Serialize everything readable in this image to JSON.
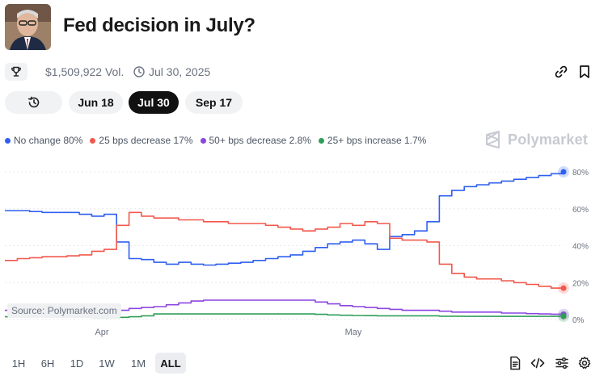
{
  "header": {
    "title": "Fed decision in July?",
    "volume": "$1,509,922 Vol.",
    "date": "Jul 30, 2025"
  },
  "date_pills": [
    {
      "label": "Jun 18",
      "active": false
    },
    {
      "label": "Jul 30",
      "active": true
    },
    {
      "label": "Sep 17",
      "active": false
    }
  ],
  "brand": "Polymarket",
  "source": "Source: Polymarket.com",
  "timeframes": [
    {
      "label": "1H",
      "active": false
    },
    {
      "label": "6H",
      "active": false
    },
    {
      "label": "1D",
      "active": false
    },
    {
      "label": "1W",
      "active": false
    },
    {
      "label": "1M",
      "active": false
    },
    {
      "label": "ALL",
      "active": true
    }
  ],
  "chart_data": {
    "type": "line",
    "ylim": [
      0,
      80
    ],
    "yticks": [
      "80%",
      "60%",
      "40%",
      "20%",
      "0%"
    ],
    "xticks": [
      "Apr",
      "May"
    ],
    "legend_position": "top-left",
    "series": [
      {
        "name": "No change",
        "legend_label": "No change 80%",
        "color": "#2f5ff0",
        "values": [
          59,
          59,
          58.5,
          58,
          58,
          58,
          57,
          56,
          57,
          42,
          33,
          32.5,
          31,
          30,
          31,
          30,
          29.5,
          30,
          30.5,
          31,
          32,
          33,
          34,
          35,
          37,
          39,
          41,
          42,
          43,
          41,
          38,
          45,
          46,
          48,
          53,
          67,
          70,
          72,
          73,
          74,
          75,
          76,
          77,
          78,
          79,
          80
        ]
      },
      {
        "name": "25 bps decrease",
        "legend_label": "25 bps decrease 17%",
        "color": "#f2584c",
        "values": [
          32,
          33,
          33.5,
          34,
          34,
          34.5,
          35,
          37,
          38,
          51,
          58,
          56,
          55,
          55,
          54,
          54,
          53,
          53,
          52,
          52,
          52,
          51,
          50,
          49,
          48,
          49,
          50,
          52,
          51,
          53,
          52,
          44,
          43,
          43,
          42,
          30,
          25,
          23,
          22,
          22,
          21,
          20,
          19,
          18,
          17,
          17
        ]
      },
      {
        "name": "50+ bps decrease",
        "legend_label": "50+ bps decrease 2.8%",
        "color": "#8b45e0",
        "values": [
          5,
          5,
          5,
          5,
          5,
          5,
          5,
          5,
          5,
          5,
          6,
          6.5,
          7,
          8,
          9,
          10,
          10.5,
          10.5,
          10.5,
          10.5,
          10.5,
          10.5,
          10.5,
          10.5,
          10.5,
          9.5,
          8.5,
          7.5,
          7,
          6.5,
          6,
          5.5,
          5,
          5,
          5,
          4.5,
          4,
          4,
          4,
          4,
          3.5,
          3.5,
          3.2,
          3,
          2.9,
          2.8
        ]
      },
      {
        "name": "25+ bps increase",
        "legend_label": "25+ bps increase 1.7%",
        "color": "#2e9e57",
        "values": [
          1.5,
          1.5,
          1.4,
          1.4,
          1.3,
          1.3,
          1.3,
          1.2,
          1.2,
          1.2,
          1.5,
          2,
          3,
          3,
          3,
          3,
          3,
          3,
          3,
          3,
          3,
          3,
          3,
          3,
          3,
          2.8,
          2.5,
          2.3,
          2.2,
          2.1,
          2,
          2,
          2,
          2,
          2,
          1.8,
          1.8,
          1.7,
          1.7,
          1.7,
          1.7,
          1.7,
          1.7,
          1.7,
          1.7,
          1.7
        ]
      }
    ]
  }
}
